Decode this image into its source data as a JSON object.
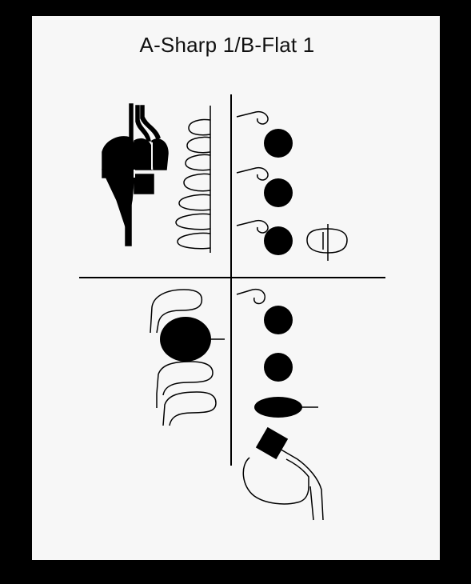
{
  "diagram": {
    "title": "A-Sharp 1/B-Flat 1",
    "colors": {
      "background": "#000000",
      "page": "#f7f7f7",
      "ink": "#000000"
    },
    "keys": {
      "palm_keys": "open",
      "front_f_key": "open",
      "side_keys": "open",
      "left_hand": [
        "closed",
        "closed",
        "closed"
      ],
      "left_trill_keys": "open",
      "octave_key": "open",
      "bis_key": "open",
      "right_hand": [
        "closed",
        "closed",
        "closed"
      ],
      "right_side_keys": "open",
      "low_c_key": "closed",
      "low_b_key": "closed",
      "low_b_flat_key": "closed",
      "low_c_sharp_key": "open",
      "g_sharp_key": "open"
    }
  }
}
